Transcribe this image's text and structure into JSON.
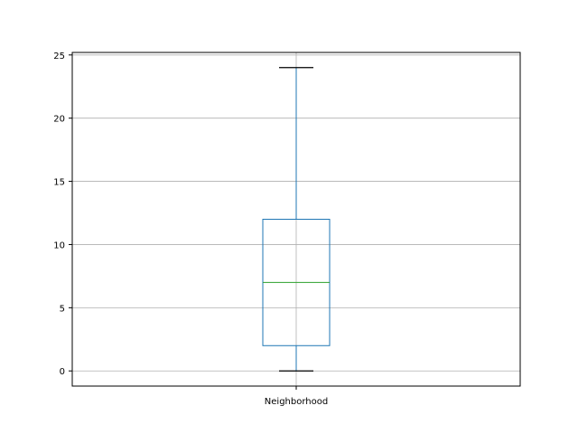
{
  "chart_data": {
    "type": "box",
    "title": "",
    "xlabel": "",
    "ylabel": "",
    "categories": [
      "Neighborhood"
    ],
    "boxes": [
      {
        "name": "Neighborhood",
        "whisker_low": 0,
        "q1": 2,
        "median": 7,
        "q3": 12,
        "whisker_high": 24
      }
    ],
    "ylim": [
      -1.2,
      25.2
    ],
    "yticks": [
      0,
      5,
      10,
      15,
      20,
      25
    ],
    "grid": true,
    "colors": {
      "box": "#1f77b4",
      "whisker": "#1f77b4",
      "cap": "#000000",
      "median": "#2ca02c",
      "grid": "#b0b0b0"
    }
  }
}
